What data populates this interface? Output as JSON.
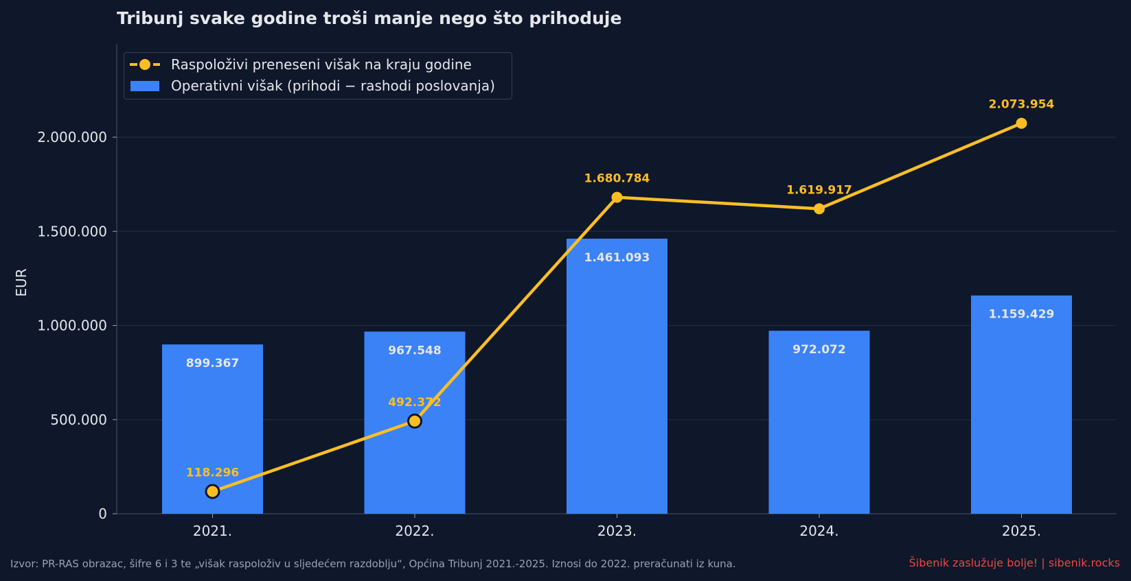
{
  "chart_data": {
    "type": "bar",
    "title": "Tribunj svake godine troši manje nego što prihoduje",
    "ylabel": "EUR",
    "xlabel": "",
    "categories": [
      "2021.",
      "2022.",
      "2023.",
      "2024.",
      "2025."
    ],
    "ylim": [
      0,
      2500000
    ],
    "yticks": [
      0,
      500000,
      1000000,
      1500000,
      2000000
    ],
    "ytick_labels": [
      "0",
      "500.000",
      "1.000.000",
      "1.500.000",
      "2.000.000"
    ],
    "grid": true,
    "legend_position": "top-left",
    "series": [
      {
        "name": "Operativni višak (prihodi − rashodi poslovanja)",
        "type": "bar",
        "color": "#3b82f6",
        "values": [
          899367,
          967548,
          1461093,
          972072,
          1159429
        ],
        "labels": [
          "899.367",
          "967.548",
          "1.461.093",
          "972.072",
          "1.159.429"
        ]
      },
      {
        "name": "Raspoloživi preneseni višak na kraju godine",
        "type": "line",
        "color": "#fbbf24",
        "values": [
          118296,
          492372,
          1680784,
          1619917,
          2073954
        ],
        "labels": [
          "118.296",
          "492.372",
          "1.680.784",
          "1.619.917",
          "2.073.954"
        ]
      }
    ]
  },
  "footer": {
    "source": "Izvor: PR-RAS obrazac, šifre 6 i 3 te „višak raspoloživ u sljedećem razdoblju“, Općina Tribunj 2021.-2025. Iznosi do 2022. preračunati iz kuna.",
    "brand": "Šibenik zaslužuje bolje!  |  sibenik.rocks"
  },
  "colors": {
    "background": "#0f172a",
    "bar": "#3b82f6",
    "line": "#fbbf24",
    "grid": "#1e293b",
    "text": "#e5e7eb",
    "brand": "#ef4444"
  }
}
